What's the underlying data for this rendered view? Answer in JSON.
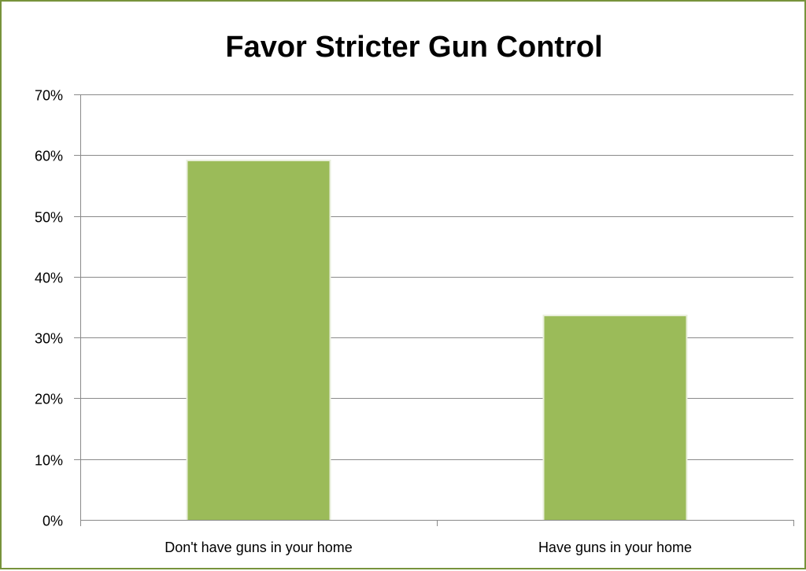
{
  "chart_data": {
    "type": "bar",
    "title": "Favor Stricter Gun Control",
    "xlabel": "",
    "ylabel": "",
    "categories": [
      "Don't have guns in your home",
      "Have guns in your home"
    ],
    "values": [
      0.59,
      0.335
    ],
    "ylim": [
      0,
      0.7
    ],
    "yticks": [
      0,
      0.1,
      0.2,
      0.3,
      0.4,
      0.5,
      0.6,
      0.7
    ],
    "ytick_labels": [
      "0%",
      "10%",
      "20%",
      "30%",
      "40%",
      "50%",
      "60%",
      "70%"
    ],
    "grid": true,
    "legend": "none",
    "bar_color": "#9bbb59"
  }
}
